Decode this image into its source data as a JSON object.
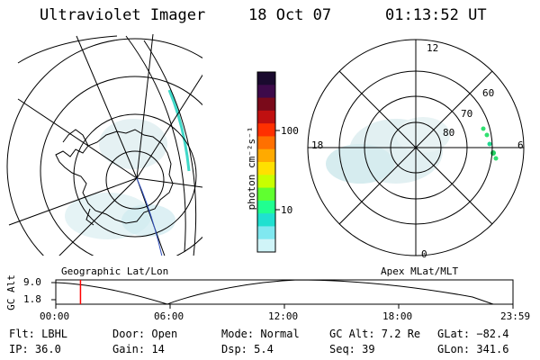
{
  "header": {
    "title": "Ultraviolet Imager",
    "date": "18 Oct 07",
    "time": "01:13:52 UT"
  },
  "left_map": {
    "caption": "Geographic Lat/Lon"
  },
  "right_map": {
    "caption": "Apex MLat/MLT",
    "mlt_labels": [
      "12",
      "18",
      "6",
      "0"
    ],
    "lat_labels": [
      "60",
      "70",
      "80"
    ]
  },
  "colorbar": {
    "unit_label": "photon cm⁻²s⁻¹",
    "tick_labels": [
      "100",
      "10"
    ],
    "colors": [
      "#1a0a2e",
      "#3d0a4a",
      "#7a0a1a",
      "#c01010",
      "#ff3000",
      "#ff7000",
      "#ffaa00",
      "#ffe000",
      "#c8ff00",
      "#60ff30",
      "#20ff90",
      "#20e0d0",
      "#80e8f0",
      "#d0f4f8"
    ]
  },
  "altitude_plot": {
    "ylabel": "GC Alt",
    "y_ticks": [
      "9.0",
      "1.8"
    ],
    "x_ticks": [
      "00:00",
      "06:00",
      "12:00",
      "18:00",
      "23:59"
    ],
    "current_time_fraction": 0.054,
    "marker_color": "#ff0000"
  },
  "info": {
    "flt": "Flt: LBHL",
    "ip": "IP: 36.0",
    "door": "Door: Open",
    "gain": "Gain: 14",
    "mode": "Mode: Normal",
    "dsp": "Dsp:     5.4",
    "gc_alt": "GC Alt: 7.2 Re",
    "seq": "Seq: 39",
    "glat": "GLat: −82.4",
    "glon": "GLon: 341.6"
  }
}
